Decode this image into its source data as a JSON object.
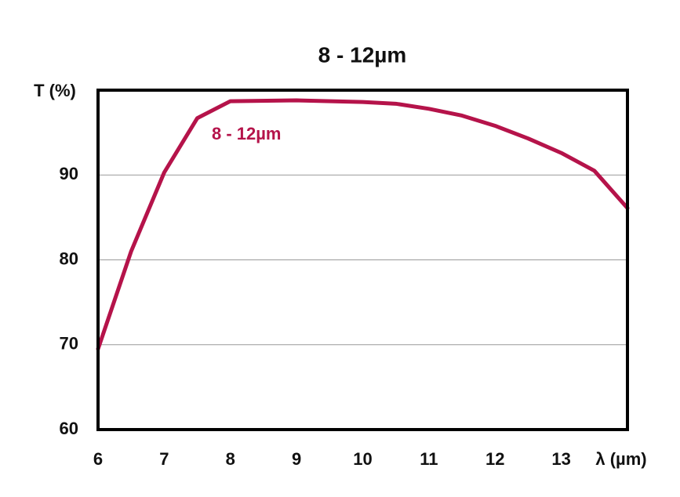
{
  "chart_data": {
    "type": "line",
    "title": "8 - 12µm",
    "y_label": "T (%)",
    "x_label": "λ (µm)",
    "x": [
      6,
      6.5,
      7,
      7.5,
      8,
      9,
      10,
      10.5,
      11,
      11.5,
      12,
      12.5,
      13,
      13.5,
      14
    ],
    "series": [
      {
        "name": "8 - 12µm",
        "color": "#b5134a",
        "values": [
          69.5,
          81,
          90.3,
          96.7,
          98.7,
          98.8,
          98.6,
          98.4,
          97.8,
          97,
          95.8,
          94.3,
          92.6,
          90.5,
          86.1
        ]
      }
    ],
    "xlim": [
      6,
      14
    ],
    "xticks": [
      6,
      7,
      8,
      9,
      10,
      11,
      12,
      13
    ],
    "ylim": [
      60,
      100
    ],
    "yticks": [
      60,
      70,
      80,
      90
    ],
    "grid": true
  }
}
